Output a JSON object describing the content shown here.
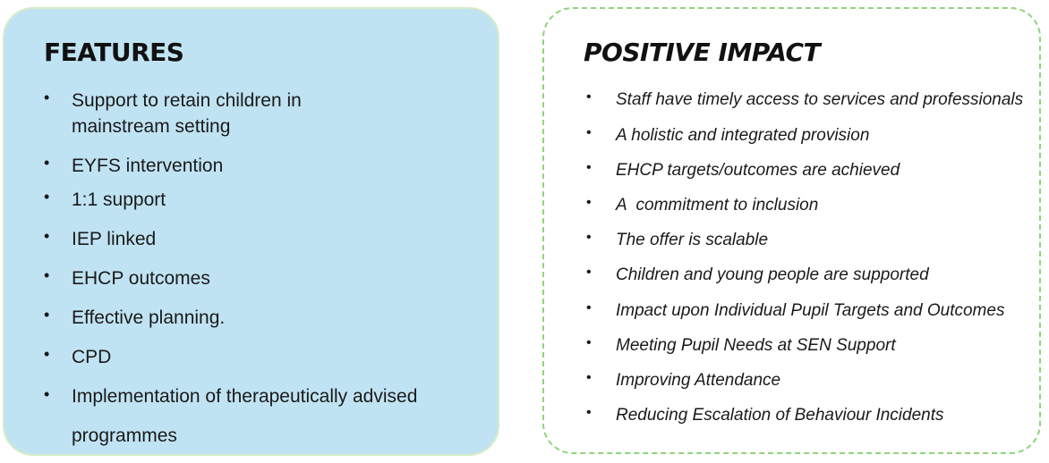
{
  "features": {
    "title": "FEATURES",
    "items": [
      "Support to retain children in mainstream setting",
      "EYFS intervention",
      "1:1 support",
      "IEP linked",
      "EHCP outcomes",
      "Effective planning.",
      "CPD",
      "Implementation of therapeutically advised programmes"
    ],
    "item_lines": [
      [
        "Support to retain children in",
        "mainstream setting"
      ],
      [
        "EYFS intervention"
      ],
      [
        "1:1 support"
      ],
      [
        "IEP linked"
      ],
      [
        "EHCP outcomes"
      ],
      [
        "Effective planning."
      ],
      [
        "CPD"
      ],
      [
        "Implementation of therapeutically advised",
        "programmes"
      ]
    ]
  },
  "impact": {
    "title": "POSITIVE IMPACT",
    "items": [
      "Staff have timely access to services and professionals",
      "A holistic and integrated provision",
      "EHCP targets/outcomes are achieved",
      "A  commitment to inclusion",
      "The offer is scalable",
      "Children and young people are supported",
      "Impact upon Individual Pupil Targets and Outcomes",
      "Meeting Pupil Needs at SEN Support",
      "Improving Attendance",
      "Reducing Escalation of Behaviour Incidents"
    ]
  },
  "bullet": "•",
  "colors": {
    "features_fill": "#c0e3f3",
    "features_border": "#d5ecc6",
    "impact_border": "#8fd47a"
  }
}
